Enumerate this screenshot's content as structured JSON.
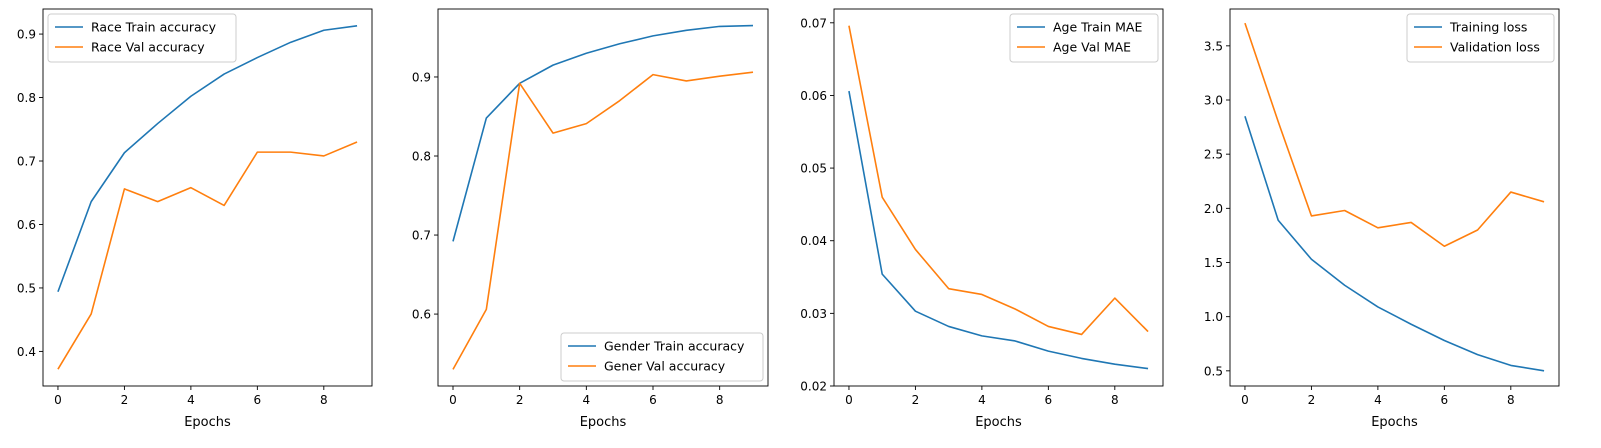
{
  "colors": {
    "series1": "#1f77b4",
    "series2": "#ff7f0e"
  },
  "chart_data": [
    {
      "type": "line",
      "xlabel": "Epochs",
      "ylabel": "",
      "x": [
        0,
        1,
        2,
        3,
        4,
        5,
        6,
        7,
        8,
        9
      ],
      "xticks": [
        "0",
        "2",
        "4",
        "6",
        "8"
      ],
      "xtick_values": [
        0,
        2,
        4,
        6,
        8
      ],
      "xlim": [
        -0.45,
        9.45
      ],
      "ylim": [
        0.3455,
        0.9395
      ],
      "yticks": [
        "0.4",
        "0.5",
        "0.6",
        "0.7",
        "0.8",
        "0.9"
      ],
      "ytick_values": [
        0.4,
        0.5,
        0.6,
        0.7,
        0.8,
        0.9
      ],
      "legend_position": "top-left",
      "grid": false,
      "series": [
        {
          "name": "Race Train accuracy",
          "values": [
            0.494,
            0.636,
            0.713,
            0.759,
            0.802,
            0.837,
            0.863,
            0.887,
            0.906,
            0.913
          ]
        },
        {
          "name": "Race Val accuracy",
          "values": [
            0.372,
            0.459,
            0.656,
            0.636,
            0.658,
            0.63,
            0.714,
            0.714,
            0.708,
            0.73
          ]
        }
      ]
    },
    {
      "type": "line",
      "xlabel": "Epochs",
      "ylabel": "",
      "x": [
        0,
        1,
        2,
        3,
        4,
        5,
        6,
        7,
        8,
        9
      ],
      "xticks": [
        "0",
        "2",
        "4",
        "6",
        "8"
      ],
      "xtick_values": [
        0,
        2,
        4,
        6,
        8
      ],
      "xlim": [
        -0.45,
        9.45
      ],
      "ylim": [
        0.509,
        0.986
      ],
      "yticks": [
        "0.6",
        "0.7",
        "0.8",
        "0.9"
      ],
      "ytick_values": [
        0.6,
        0.7,
        0.8,
        0.9
      ],
      "legend_position": "bottom-right",
      "grid": false,
      "series": [
        {
          "name": "Gender Train accuracy",
          "values": [
            0.692,
            0.848,
            0.892,
            0.915,
            0.93,
            0.942,
            0.952,
            0.959,
            0.964,
            0.965
          ]
        },
        {
          "name": "Gener Val accuracy",
          "values": [
            0.53,
            0.606,
            0.892,
            0.829,
            0.841,
            0.87,
            0.903,
            0.895,
            0.901,
            0.906
          ]
        }
      ]
    },
    {
      "type": "line",
      "xlabel": "Epochs",
      "ylabel": "",
      "x": [
        0,
        1,
        2,
        3,
        4,
        5,
        6,
        7,
        8,
        9
      ],
      "xticks": [
        "0",
        "2",
        "4",
        "6",
        "8"
      ],
      "xtick_values": [
        0,
        2,
        4,
        6,
        8
      ],
      "xlim": [
        -0.45,
        9.45
      ],
      "ylim": [
        0.02,
        0.0719
      ],
      "yticks": [
        "0.02",
        "0.03",
        "0.04",
        "0.05",
        "0.06",
        "0.07"
      ],
      "ytick_values": [
        0.02,
        0.03,
        0.04,
        0.05,
        0.06,
        0.07
      ],
      "legend_position": "top-right",
      "grid": false,
      "series": [
        {
          "name": "Age Train MAE",
          "values": [
            0.0606,
            0.0354,
            0.0303,
            0.0282,
            0.0269,
            0.0262,
            0.0248,
            0.0238,
            0.023,
            0.0224
          ]
        },
        {
          "name": "Age Val MAE",
          "values": [
            0.0696,
            0.046,
            0.0388,
            0.0334,
            0.0326,
            0.0306,
            0.0282,
            0.0271,
            0.0321,
            0.0275
          ]
        }
      ]
    },
    {
      "type": "line",
      "xlabel": "Epochs",
      "ylabel": "",
      "x": [
        0,
        1,
        2,
        3,
        4,
        5,
        6,
        7,
        8,
        9
      ],
      "xticks": [
        "0",
        "2",
        "4",
        "6",
        "8"
      ],
      "xtick_values": [
        0,
        2,
        4,
        6,
        8
      ],
      "xlim": [
        -0.45,
        9.45
      ],
      "ylim": [
        0.36,
        3.84
      ],
      "yticks": [
        "0.5",
        "1.0",
        "1.5",
        "2.0",
        "2.5",
        "3.0",
        "3.5"
      ],
      "ytick_values": [
        0.5,
        1.0,
        1.5,
        2.0,
        2.5,
        3.0,
        3.5
      ],
      "legend_position": "top-right",
      "grid": false,
      "series": [
        {
          "name": "Training loss",
          "values": [
            2.85,
            1.89,
            1.53,
            1.29,
            1.09,
            0.93,
            0.78,
            0.65,
            0.55,
            0.5
          ]
        },
        {
          "name": "Validation loss",
          "values": [
            3.71,
            2.8,
            1.93,
            1.98,
            1.82,
            1.87,
            1.65,
            1.8,
            2.15,
            2.06
          ]
        }
      ]
    }
  ]
}
